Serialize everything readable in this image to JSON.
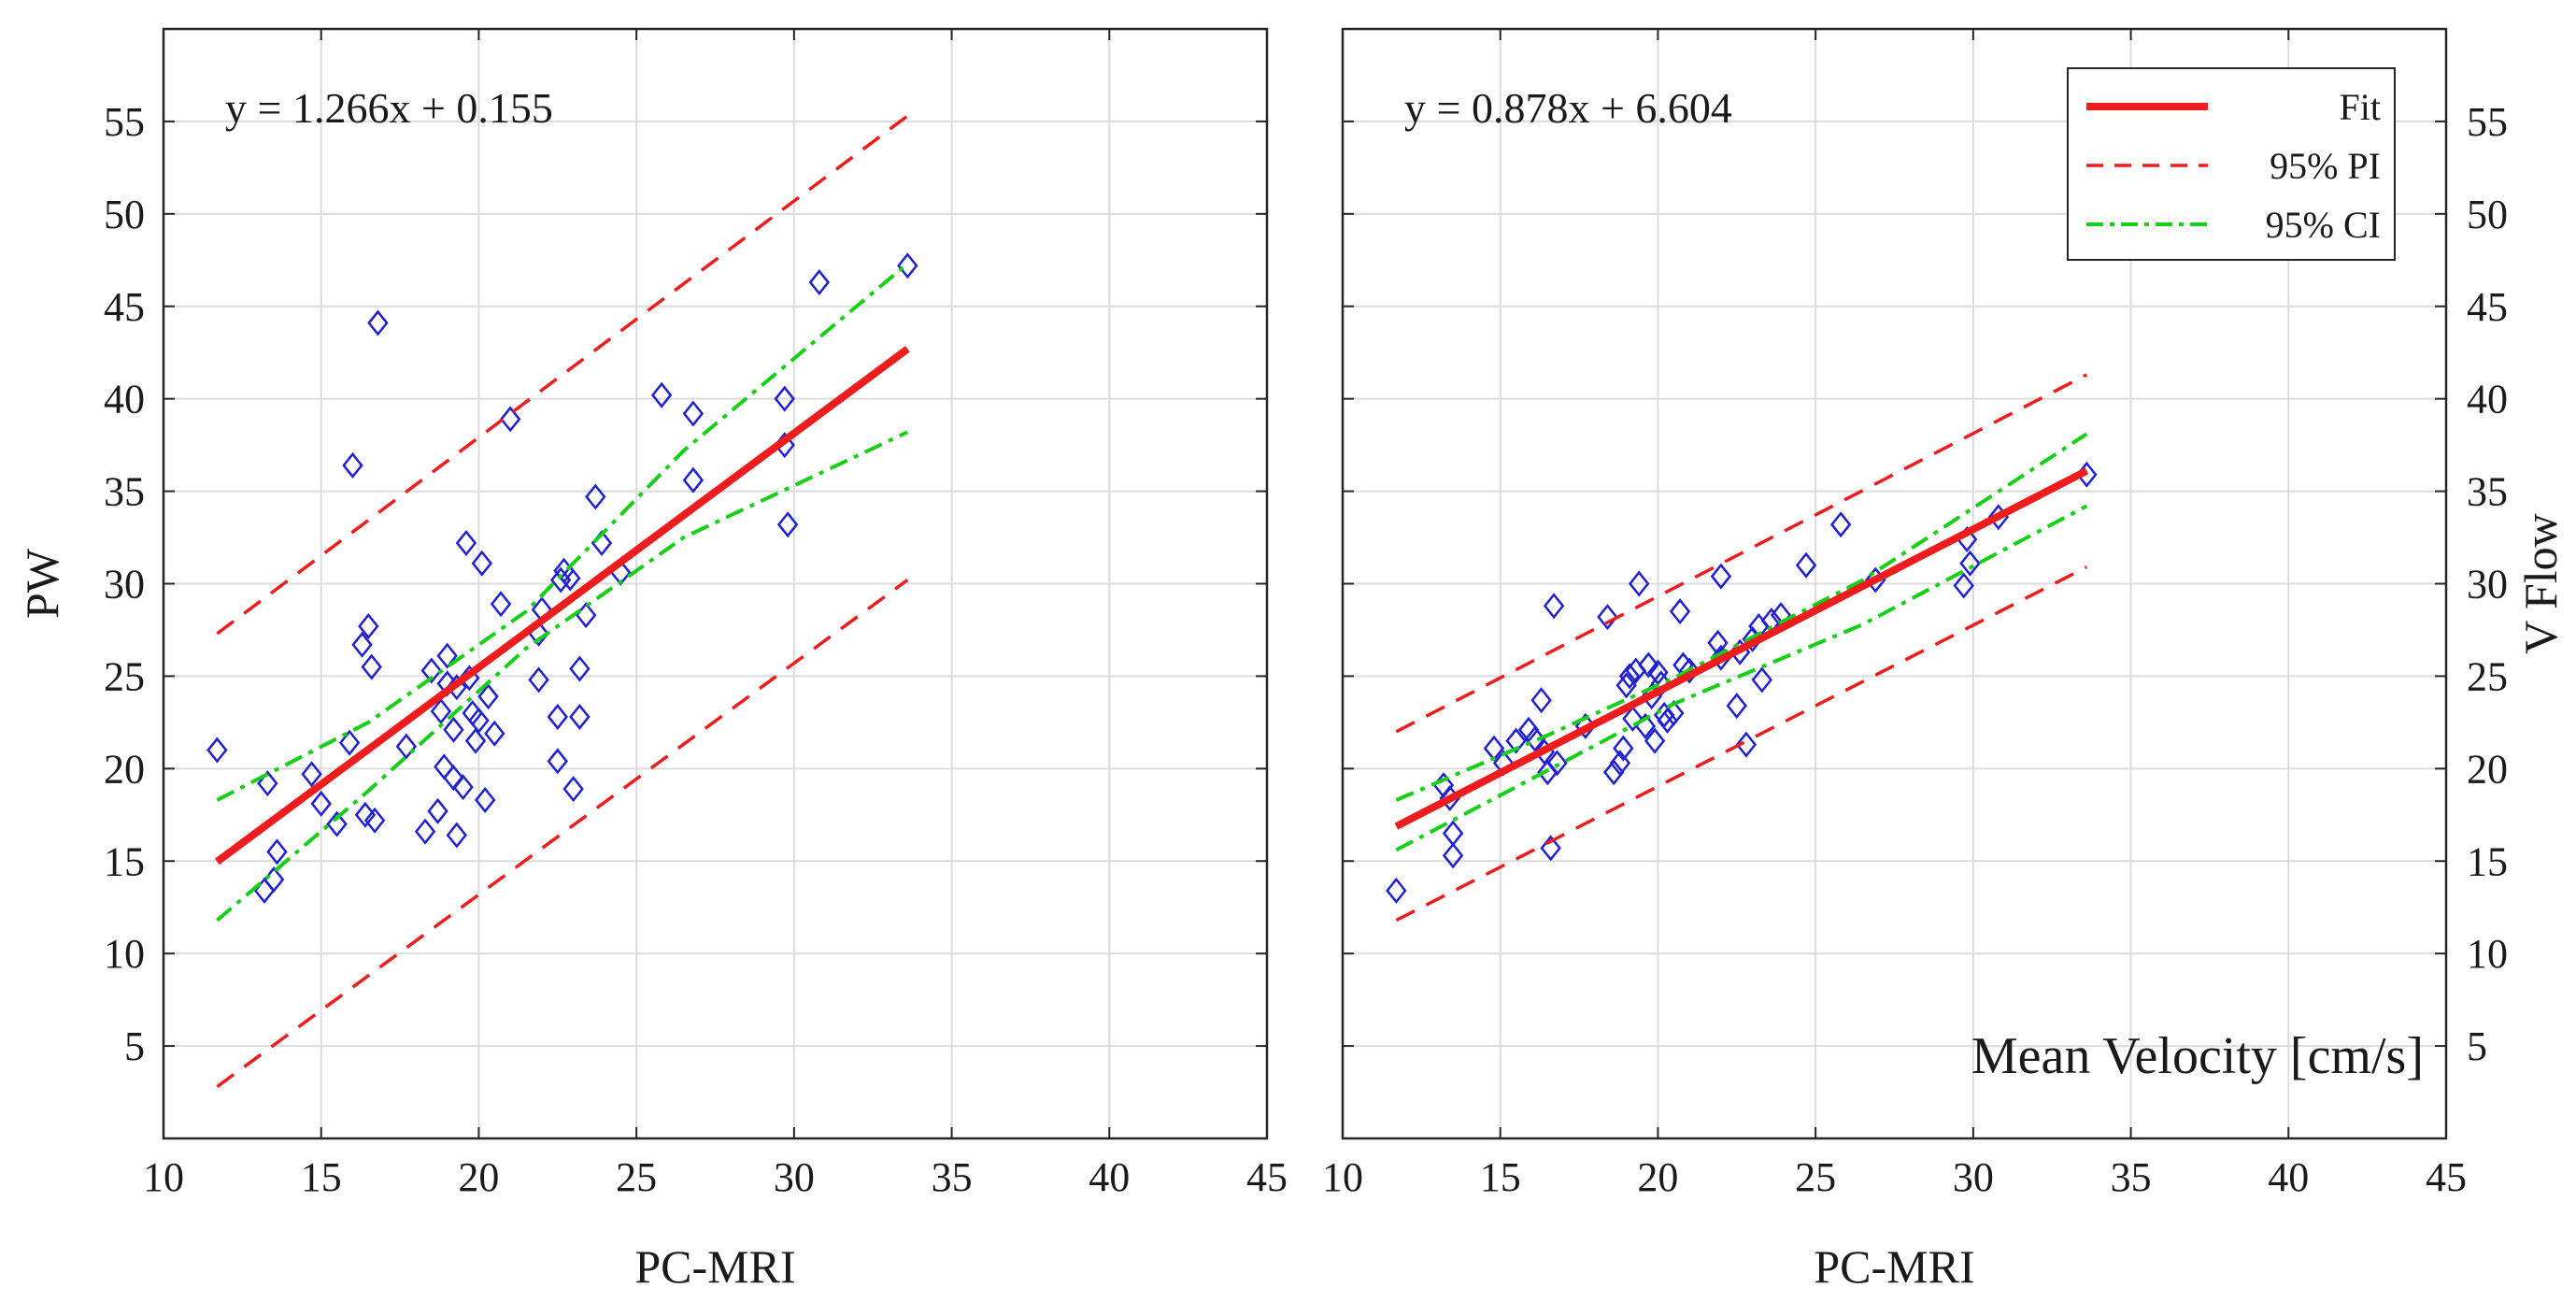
{
  "chart_data": [
    {
      "type": "scatter",
      "panel": "left",
      "title": "",
      "xlabel": "PC-MRI",
      "ylabel": "PW",
      "xlim": [
        10,
        45
      ],
      "ylim": [
        0,
        60
      ],
      "xticks": [
        10,
        15,
        20,
        25,
        30,
        35,
        40,
        45
      ],
      "yticks": [
        5,
        10,
        15,
        20,
        25,
        30,
        35,
        40,
        45,
        50,
        55
      ],
      "xtick_labels": [
        "10",
        "15",
        "20",
        "25",
        "30",
        "35",
        "40",
        "45"
      ],
      "ytick_labels": [
        "5",
        "10",
        "15",
        "20",
        "25",
        "30",
        "35",
        "40",
        "45",
        "50",
        "55"
      ],
      "ytick_side": "left",
      "grid": true,
      "equation": "y = 1.266x + 0.155",
      "fit": {
        "slope": 1.266,
        "intercept": 0.155,
        "x_range": [
          11.7,
          33.6
        ]
      },
      "pi": {
        "upper": [
          [
            11.7,
            27.3
          ],
          [
            33.6,
            55.3
          ]
        ],
        "lower": [
          [
            11.7,
            2.8
          ],
          [
            33.6,
            30.2
          ]
        ]
      },
      "ci": {
        "upper": [
          [
            11.7,
            18.3
          ],
          [
            16.5,
            22.5
          ],
          [
            21.5,
            28.5
          ],
          [
            26.5,
            37.2
          ],
          [
            33.6,
            47.3
          ]
        ],
        "lower": [
          [
            11.7,
            11.8
          ],
          [
            16.5,
            18.8
          ],
          [
            21.5,
            26.5
          ],
          [
            26.5,
            32.5
          ],
          [
            33.6,
            38.2
          ]
        ]
      },
      "series": [
        {
          "name": "Data",
          "marker": "diamond",
          "color": "#1f1fd6",
          "x": [
            11.7,
            13.2,
            13.3,
            13.5,
            13.6,
            14.7,
            15.0,
            15.5,
            15.9,
            16.0,
            16.3,
            16.4,
            16.5,
            16.6,
            16.7,
            16.8,
            17.7,
            18.3,
            18.5,
            18.7,
            18.8,
            18.9,
            19.0,
            19.0,
            19.2,
            19.2,
            19.3,
            19.3,
            19.5,
            19.6,
            19.7,
            19.8,
            19.9,
            20.0,
            20.1,
            20.2,
            20.3,
            20.5,
            20.7,
            21.0,
            21.9,
            21.9,
            22.0,
            22.5,
            22.5,
            22.6,
            22.7,
            22.9,
            23.0,
            23.2,
            23.2,
            23.4,
            23.7,
            23.9,
            24.5,
            25.8,
            26.8,
            26.8,
            29.7,
            29.7,
            29.8,
            30.8,
            33.6
          ],
          "y": [
            21.0,
            13.4,
            19.2,
            14.0,
            15.5,
            19.7,
            18.1,
            17.0,
            21.4,
            36.4,
            26.7,
            17.5,
            27.7,
            25.5,
            17.2,
            44.1,
            21.2,
            16.6,
            25.3,
            17.7,
            23.1,
            20.1,
            26.1,
            24.6,
            22.1,
            19.5,
            24.4,
            16.4,
            19.0,
            32.2,
            24.9,
            23.0,
            21.5,
            22.6,
            31.1,
            18.3,
            23.9,
            21.9,
            28.9,
            38.9,
            24.8,
            27.3,
            28.6,
            22.8,
            20.4,
            30.2,
            30.7,
            30.3,
            18.9,
            25.4,
            22.8,
            28.3,
            34.7,
            32.2,
            30.6,
            40.2,
            39.2,
            35.6,
            40.0,
            37.5,
            33.2,
            46.3,
            47.2
          ]
        }
      ],
      "legend": null
    },
    {
      "type": "scatter",
      "panel": "right",
      "title": "",
      "xlabel": "PC-MRI",
      "ylabel": "V Flow",
      "annotation": "Mean Velocity [cm/s]",
      "xlim": [
        10,
        45
      ],
      "ylim": [
        0,
        60
      ],
      "xticks": [
        10,
        15,
        20,
        25,
        30,
        35,
        40,
        45
      ],
      "yticks": [
        5,
        10,
        15,
        20,
        25,
        30,
        35,
        40,
        45,
        50,
        55
      ],
      "xtick_labels": [
        "10",
        "15",
        "20",
        "25",
        "30",
        "35",
        "40",
        "45"
      ],
      "ytick_labels": [
        "5",
        "10",
        "15",
        "20",
        "25",
        "30",
        "35",
        "40",
        "45",
        "50",
        "55"
      ],
      "ytick_side": "right",
      "grid": true,
      "equation": "y = 0.878x + 6.604",
      "fit": {
        "slope": 0.878,
        "intercept": 6.604,
        "x_range": [
          11.7,
          33.6
        ]
      },
      "pi": {
        "upper": [
          [
            11.7,
            22.0
          ],
          [
            33.6,
            41.3
          ]
        ],
        "lower": [
          [
            11.7,
            11.8
          ],
          [
            33.6,
            30.9
          ]
        ]
      },
      "ci": {
        "upper": [
          [
            11.7,
            18.3
          ],
          [
            16.5,
            21.8
          ],
          [
            20.5,
            24.9
          ],
          [
            26.5,
            30.2
          ],
          [
            33.6,
            38.1
          ]
        ],
        "lower": [
          [
            11.7,
            15.6
          ],
          [
            16.5,
            19.9
          ],
          [
            20.5,
            23.5
          ],
          [
            26.5,
            27.8
          ],
          [
            33.6,
            34.2
          ]
        ]
      },
      "series": [
        {
          "name": "Data",
          "marker": "diamond",
          "color": "#1f1fd6",
          "x": [
            11.7,
            13.2,
            13.4,
            13.5,
            13.5,
            14.8,
            15.1,
            15.5,
            15.9,
            16.1,
            16.3,
            16.4,
            16.5,
            16.6,
            16.7,
            16.8,
            17.7,
            18.4,
            18.6,
            18.8,
            18.9,
            19.0,
            19.1,
            19.2,
            19.3,
            19.4,
            19.6,
            19.7,
            19.8,
            19.9,
            20.0,
            20.1,
            20.2,
            20.3,
            20.5,
            20.7,
            20.8,
            21.0,
            21.9,
            22.0,
            22.0,
            22.5,
            22.6,
            22.8,
            23.0,
            23.2,
            23.3,
            23.6,
            23.9,
            24.7,
            25.8,
            26.9,
            29.7,
            29.8,
            29.9,
            30.8,
            33.6
          ],
          "y": [
            13.4,
            19.1,
            18.4,
            16.5,
            15.3,
            21.1,
            20.3,
            21.5,
            22.1,
            21.6,
            23.7,
            20.9,
            19.8,
            15.7,
            28.8,
            20.3,
            22.3,
            28.2,
            19.8,
            20.3,
            21.1,
            24.5,
            25.0,
            22.7,
            25.3,
            30.0,
            22.3,
            25.6,
            23.9,
            21.5,
            25.2,
            24.6,
            22.9,
            22.6,
            23.0,
            28.5,
            25.6,
            25.3,
            26.8,
            26.0,
            30.4,
            23.4,
            26.3,
            21.3,
            27.0,
            27.7,
            24.8,
            28.0,
            28.3,
            31.0,
            33.2,
            30.2,
            29.9,
            32.4,
            31.1,
            33.6,
            35.9
          ]
        }
      ],
      "legend": {
        "position": "top-right",
        "entries": [
          {
            "label": "Fit",
            "color": "#ee1c1c",
            "style": "solid"
          },
          {
            "label": "95% PI",
            "color": "#ee1c1c",
            "style": "dashed"
          },
          {
            "label": "95% CI",
            "color": "#16d016",
            "style": "dashdot"
          }
        ]
      }
    }
  ]
}
